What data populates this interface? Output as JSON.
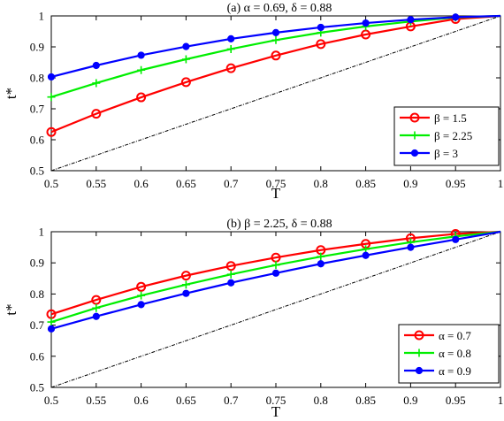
{
  "chart_data": [
    {
      "type": "line",
      "title": "(a) α = 0.69, δ = 0.88",
      "xlabel": "T",
      "ylabel": "t*",
      "xlim": [
        0.5,
        1
      ],
      "ylim": [
        0.5,
        1
      ],
      "xticks": [
        "0.5",
        "0.55",
        "0.6",
        "0.65",
        "0.7",
        "0.75",
        "0.8",
        "0.85",
        "0.9",
        "0.95",
        "1"
      ],
      "yticks": [
        "0.5",
        "0.6",
        "0.7",
        "0.8",
        "0.9",
        "1"
      ],
      "x": [
        0.5,
        0.55,
        0.6,
        0.65,
        0.7,
        0.75,
        0.8,
        0.85,
        0.9,
        0.95,
        1.0
      ],
      "reference_line": "t* = T",
      "legend_position": "lower-right",
      "series": [
        {
          "name": "β = 1.5",
          "color": "#ff0000",
          "marker": "circle-open",
          "values": [
            0.625,
            0.684,
            0.737,
            0.786,
            0.831,
            0.872,
            0.909,
            0.94,
            0.966,
            0.99,
            1.0
          ]
        },
        {
          "name": "β = 2.25",
          "color": "#00ee00",
          "marker": "plus",
          "values": [
            0.738,
            0.783,
            0.825,
            0.86,
            0.893,
            0.922,
            0.946,
            0.966,
            0.982,
            0.995,
            1.0
          ]
        },
        {
          "name": "β = 3",
          "color": "#0000ff",
          "marker": "dot",
          "values": [
            0.803,
            0.84,
            0.873,
            0.901,
            0.926,
            0.946,
            0.963,
            0.977,
            0.988,
            0.996,
            1.0
          ]
        }
      ]
    },
    {
      "type": "line",
      "title": "(b) β = 2.25, δ = 0.88",
      "xlabel": "T",
      "ylabel": "t*",
      "xlim": [
        0.5,
        1
      ],
      "ylim": [
        0.5,
        1
      ],
      "xticks": [
        "0.5",
        "0.55",
        "0.6",
        "0.65",
        "0.7",
        "0.75",
        "0.8",
        "0.85",
        "0.9",
        "0.95",
        "1"
      ],
      "yticks": [
        "0.5",
        "0.6",
        "0.7",
        "0.8",
        "0.9",
        "1"
      ],
      "x": [
        0.5,
        0.55,
        0.6,
        0.65,
        0.7,
        0.75,
        0.8,
        0.85,
        0.9,
        0.95,
        1.0
      ],
      "reference_line": "t* = T",
      "legend_position": "lower-right",
      "series": [
        {
          "name": "α = 0.7",
          "color": "#ff0000",
          "marker": "circle-open",
          "values": [
            0.735,
            0.781,
            0.823,
            0.859,
            0.89,
            0.917,
            0.941,
            0.961,
            0.979,
            0.993,
            1.0
          ]
        },
        {
          "name": "α = 0.8",
          "color": "#00ee00",
          "marker": "plus",
          "values": [
            0.71,
            0.755,
            0.795,
            0.83,
            0.863,
            0.893,
            0.92,
            0.944,
            0.966,
            0.985,
            1.0
          ]
        },
        {
          "name": "α = 0.9",
          "color": "#0000ff",
          "marker": "dot",
          "values": [
            0.688,
            0.728,
            0.766,
            0.802,
            0.836,
            0.867,
            0.897,
            0.924,
            0.95,
            0.975,
            1.0
          ]
        }
      ]
    }
  ]
}
